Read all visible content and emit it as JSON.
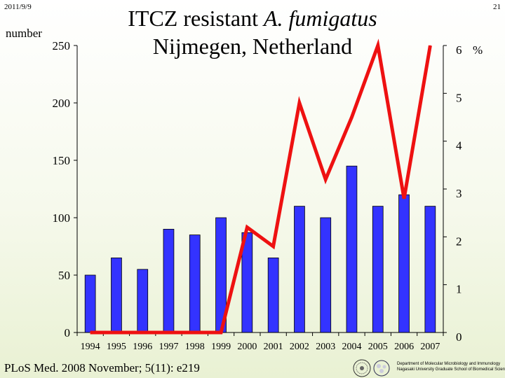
{
  "header": {
    "date": "2011/9/9",
    "page_number": "21"
  },
  "title": {
    "line1_prefix": "ITCZ resistant ",
    "line1_italic": "A. fumigatus",
    "line2": "Nijmegen, Netherland"
  },
  "footer": {
    "citation": "PLoS Med. 2008 November; 5(11): e219",
    "department_line1": "Department of Molecular Microbiology and Immunology",
    "department_line2": "Nagasaki University Graduate School of Biomedical Sciences"
  },
  "colors": {
    "bar": "#3333ff",
    "line": "#ee1111",
    "axis": "#000000"
  },
  "chart_data": {
    "type": "bar",
    "title": "ITCZ resistant A. fumigatus Nijmegen, Netherland",
    "ylabel": "number",
    "y2label": "%",
    "categories": [
      "1994",
      "1995",
      "1996",
      "1997",
      "1998",
      "1999",
      "2000",
      "2001",
      "2002",
      "2003",
      "2004",
      "2005",
      "2006",
      "2007"
    ],
    "ylim": [
      0,
      250
    ],
    "yticks": [
      0,
      50,
      100,
      150,
      200,
      250
    ],
    "y2lim": [
      0,
      6
    ],
    "y2ticks": [
      0,
      1,
      2,
      3,
      4,
      5,
      6
    ],
    "series": [
      {
        "type": "bar",
        "axis": "left",
        "values": [
          50,
          65,
          55,
          90,
          85,
          100,
          87,
          65,
          110,
          100,
          145,
          110,
          120,
          110
        ]
      },
      {
        "type": "line",
        "axis": "right",
        "values": [
          0,
          0,
          0,
          0,
          0,
          0,
          2.2,
          1.8,
          4.8,
          3.2,
          4.5,
          6.0,
          2.8,
          6.0
        ]
      }
    ],
    "grid": false,
    "legend": "none"
  }
}
